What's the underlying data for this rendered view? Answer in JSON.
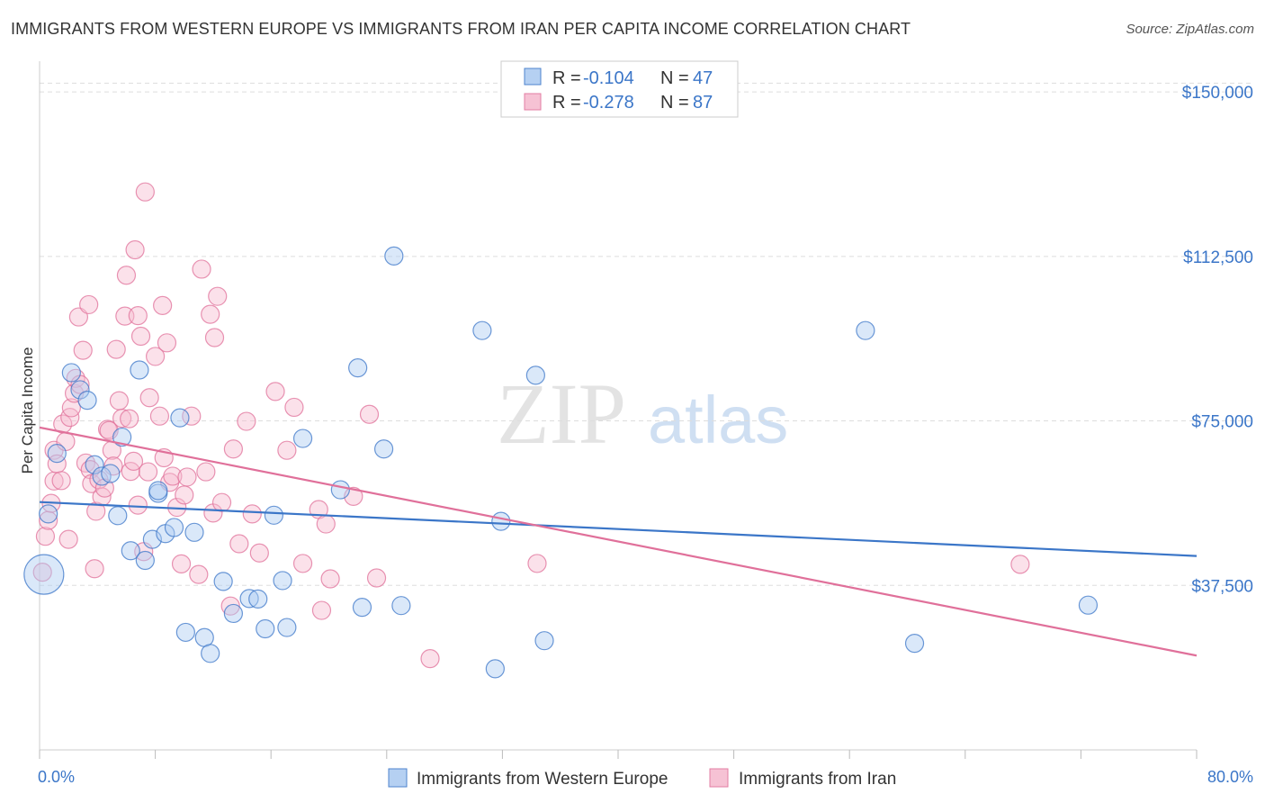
{
  "header": {
    "title": "IMMIGRANTS FROM WESTERN EUROPE VS IMMIGRANTS FROM IRAN PER CAPITA INCOME CORRELATION CHART",
    "source": "Source: ZipAtlas.com"
  },
  "watermark": {
    "zip": "ZIP",
    "atlas": "atlas"
  },
  "colors": {
    "blue": "#3b76c8",
    "blue_fill": "#aecbf1",
    "pink": "#e0709a",
    "pink_fill": "#f6bcd0",
    "grid": "#dddddd"
  },
  "chart_data": {
    "type": "scatter",
    "title": "IMMIGRANTS FROM WESTERN EUROPE VS IMMIGRANTS FROM IRAN PER CAPITA INCOME CORRELATION CHART",
    "ylabel": "Per Capita Income",
    "xlabel": "",
    "xlim": [
      0,
      80
    ],
    "ylim": [
      0,
      157000
    ],
    "x_tick_labels": {
      "min": "0.0%",
      "max": "80.0%"
    },
    "y_ticks": [
      {
        "value": 37500,
        "label": "$37,500"
      },
      {
        "value": 75000,
        "label": "$75,000"
      },
      {
        "value": 112500,
        "label": "$112,500"
      },
      {
        "value": 150000,
        "label": "$150,000"
      }
    ],
    "legend": {
      "r_label": "R =",
      "n_label": "N =",
      "entries": [
        {
          "r": "-0.104",
          "n": "47"
        },
        {
          "r": "-0.278",
          "n": "87"
        }
      ]
    },
    "series": [
      {
        "name": "Immigrants from Western Europe",
        "color": "#3b76c8",
        "trend": {
          "x0": 0,
          "y0": 56500,
          "x1": 80,
          "y1": 44200
        },
        "points": [
          [
            0.3,
            40000,
            22
          ],
          [
            0.6,
            53800,
            10
          ],
          [
            1.2,
            67600,
            10
          ],
          [
            2.2,
            86000,
            10
          ],
          [
            2.8,
            82100,
            10
          ],
          [
            3.3,
            79700,
            10
          ],
          [
            3.8,
            65000,
            10
          ],
          [
            4.3,
            62400,
            10
          ],
          [
            4.9,
            63000,
            10
          ],
          [
            5.4,
            53400,
            10
          ],
          [
            5.7,
            71300,
            10
          ],
          [
            6.3,
            45400,
            10
          ],
          [
            6.9,
            86600,
            10
          ],
          [
            7.3,
            43200,
            10
          ],
          [
            7.8,
            48000,
            10
          ],
          [
            8.2,
            58500,
            10
          ],
          [
            8.7,
            49300,
            10
          ],
          [
            9.3,
            50700,
            10
          ],
          [
            9.7,
            75700,
            10
          ],
          [
            10.1,
            26800,
            10
          ],
          [
            10.7,
            49600,
            10
          ],
          [
            11.4,
            25600,
            10
          ],
          [
            11.8,
            22000,
            10
          ],
          [
            12.7,
            38400,
            10
          ],
          [
            13.4,
            31100,
            10
          ],
          [
            14.5,
            34500,
            10
          ],
          [
            15.1,
            34400,
            10
          ],
          [
            15.6,
            27600,
            10
          ],
          [
            16.2,
            53500,
            10
          ],
          [
            16.8,
            38600,
            10
          ],
          [
            17.1,
            27900,
            10
          ],
          [
            18.2,
            71000,
            10
          ],
          [
            20.8,
            59300,
            10
          ],
          [
            22.0,
            87100,
            10
          ],
          [
            22.3,
            32500,
            10
          ],
          [
            23.8,
            68600,
            10
          ],
          [
            25.0,
            32900,
            10
          ],
          [
            24.5,
            112600,
            10
          ],
          [
            30.6,
            95600,
            10
          ],
          [
            31.5,
            18500,
            10
          ],
          [
            31.9,
            52100,
            10
          ],
          [
            34.3,
            85400,
            10
          ],
          [
            34.9,
            24900,
            10
          ],
          [
            57.1,
            95600,
            10
          ],
          [
            60.5,
            24300,
            10
          ],
          [
            72.5,
            33000,
            10
          ],
          [
            8.2,
            59100,
            10
          ]
        ]
      },
      {
        "name": "Immigrants from Iran",
        "color": "#e0709a",
        "trend": {
          "x0": 0,
          "y0": 73500,
          "x1": 80,
          "y1": 21500
        },
        "points": [
          [
            0.2,
            40500,
            10
          ],
          [
            0.4,
            48700,
            10
          ],
          [
            0.6,
            52300,
            10
          ],
          [
            0.8,
            56200,
            10
          ],
          [
            1.0,
            61300,
            10
          ],
          [
            1.0,
            68300,
            10
          ],
          [
            1.2,
            65200,
            10
          ],
          [
            1.5,
            61400,
            10
          ],
          [
            1.6,
            74300,
            10
          ],
          [
            1.8,
            70300,
            10
          ],
          [
            2.0,
            48000,
            10
          ],
          [
            2.1,
            75800,
            10
          ],
          [
            2.2,
            78000,
            10
          ],
          [
            2.4,
            81300,
            10
          ],
          [
            2.5,
            84700,
            10
          ],
          [
            2.7,
            98700,
            10
          ],
          [
            2.8,
            83300,
            10
          ],
          [
            3.0,
            91100,
            10
          ],
          [
            3.2,
            65400,
            10
          ],
          [
            3.4,
            101500,
            10
          ],
          [
            3.5,
            63900,
            10
          ],
          [
            3.6,
            60700,
            10
          ],
          [
            3.8,
            41300,
            10
          ],
          [
            3.9,
            54400,
            10
          ],
          [
            4.1,
            61600,
            10
          ],
          [
            4.3,
            57700,
            10
          ],
          [
            4.5,
            59700,
            10
          ],
          [
            4.7,
            73100,
            10
          ],
          [
            4.8,
            72800,
            10
          ],
          [
            5.0,
            68300,
            10
          ],
          [
            5.1,
            64700,
            10
          ],
          [
            5.3,
            91300,
            10
          ],
          [
            5.5,
            79600,
            10
          ],
          [
            5.7,
            75600,
            10
          ],
          [
            5.9,
            98900,
            10
          ],
          [
            6.0,
            108200,
            10
          ],
          [
            6.2,
            75500,
            10
          ],
          [
            6.3,
            63500,
            10
          ],
          [
            6.5,
            65800,
            10
          ],
          [
            6.6,
            114000,
            10
          ],
          [
            6.8,
            99000,
            10
          ],
          [
            6.8,
            55800,
            10
          ],
          [
            7.0,
            94300,
            10
          ],
          [
            7.2,
            45200,
            10
          ],
          [
            7.3,
            127200,
            10
          ],
          [
            7.5,
            63400,
            10
          ],
          [
            7.6,
            80300,
            10
          ],
          [
            8.0,
            89700,
            10
          ],
          [
            8.3,
            76100,
            10
          ],
          [
            8.5,
            101300,
            10
          ],
          [
            8.6,
            66600,
            10
          ],
          [
            8.8,
            92800,
            10
          ],
          [
            9.0,
            61000,
            10
          ],
          [
            9.2,
            62400,
            10
          ],
          [
            9.5,
            55300,
            10
          ],
          [
            9.8,
            42400,
            10
          ],
          [
            10.0,
            58100,
            10
          ],
          [
            10.2,
            62200,
            10
          ],
          [
            10.5,
            76100,
            10
          ],
          [
            11.0,
            40000,
            10
          ],
          [
            11.2,
            109600,
            10
          ],
          [
            11.5,
            63400,
            10
          ],
          [
            11.8,
            99300,
            10
          ],
          [
            12.0,
            54000,
            10
          ],
          [
            12.1,
            94000,
            10
          ],
          [
            12.3,
            103400,
            10
          ],
          [
            12.6,
            56400,
            10
          ],
          [
            13.2,
            32800,
            10
          ],
          [
            13.4,
            68600,
            10
          ],
          [
            13.8,
            47000,
            10
          ],
          [
            14.3,
            74900,
            10
          ],
          [
            14.7,
            53800,
            10
          ],
          [
            15.2,
            44900,
            10
          ],
          [
            16.3,
            81700,
            10
          ],
          [
            17.1,
            68300,
            10
          ],
          [
            17.6,
            78100,
            10
          ],
          [
            18.2,
            42500,
            10
          ],
          [
            19.3,
            54800,
            10
          ],
          [
            19.5,
            31800,
            10
          ],
          [
            19.8,
            51500,
            10
          ],
          [
            20.1,
            39000,
            10
          ],
          [
            21.7,
            57800,
            10
          ],
          [
            22.8,
            76500,
            10
          ],
          [
            23.3,
            39200,
            10
          ],
          [
            27.0,
            20800,
            10
          ],
          [
            34.4,
            42500,
            10
          ],
          [
            67.8,
            42300,
            10
          ]
        ]
      }
    ]
  },
  "bottom_legend": {
    "items": [
      {
        "label": "Immigrants from Western Europe"
      },
      {
        "label": "Immigrants from Iran"
      }
    ]
  }
}
